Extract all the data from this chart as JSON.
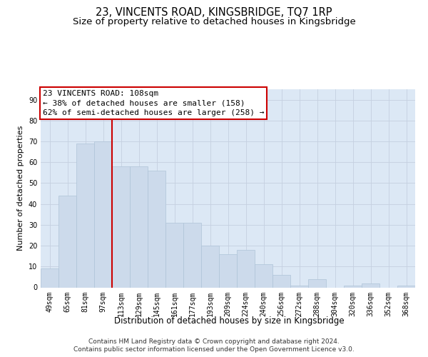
{
  "title": "23, VINCENTS ROAD, KINGSBRIDGE, TQ7 1RP",
  "subtitle": "Size of property relative to detached houses in Kingsbridge",
  "xlabel": "Distribution of detached houses by size in Kingsbridge",
  "ylabel": "Number of detached properties",
  "categories": [
    "49sqm",
    "65sqm",
    "81sqm",
    "97sqm",
    "113sqm",
    "129sqm",
    "145sqm",
    "161sqm",
    "177sqm",
    "193sqm",
    "209sqm",
    "224sqm",
    "240sqm",
    "256sqm",
    "272sqm",
    "288sqm",
    "304sqm",
    "320sqm",
    "336sqm",
    "352sqm",
    "368sqm"
  ],
  "values": [
    9,
    44,
    69,
    70,
    58,
    58,
    56,
    31,
    31,
    20,
    16,
    18,
    11,
    6,
    1,
    4,
    0,
    1,
    2,
    0,
    1
  ],
  "bar_color": "#ccdaeb",
  "bar_edgecolor": "#afc4d8",
  "vline_color": "#cc0000",
  "annotation_line1": "23 VINCENTS ROAD: 108sqm",
  "annotation_line2": "← 38% of detached houses are smaller (158)",
  "annotation_line3": "62% of semi-detached houses are larger (258) →",
  "annotation_box_edgecolor": "#cc0000",
  "annotation_fontsize": 8,
  "ylim": [
    0,
    95
  ],
  "yticks": [
    0,
    10,
    20,
    30,
    40,
    50,
    60,
    70,
    80,
    90
  ],
  "grid_color": "#c5d0e0",
  "background_color": "#dce8f5",
  "footer1": "Contains HM Land Registry data © Crown copyright and database right 2024.",
  "footer2": "Contains public sector information licensed under the Open Government Licence v3.0.",
  "title_fontsize": 10.5,
  "subtitle_fontsize": 9.5,
  "xlabel_fontsize": 8.5,
  "ylabel_fontsize": 8,
  "tick_fontsize": 7,
  "footer_fontsize": 6.5
}
